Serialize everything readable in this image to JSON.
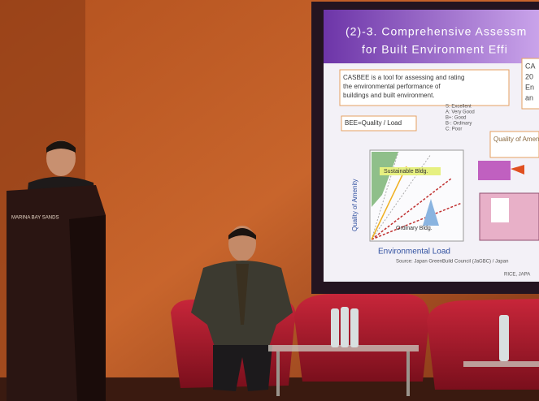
{
  "slide": {
    "title_line1": "(2)-3. Comprehensive Assessm",
    "title_line2": "for Built Environment Effi",
    "intro": [
      "CASBEE is a tool for assessing and rating",
      "the environmental performance of",
      "buildings and built environment."
    ],
    "right_box": [
      "CA",
      "20",
      "En",
      "an"
    ],
    "formula": "BEE=Quality / Load",
    "grades": [
      "S: Excellent",
      "A: Very Good",
      "B+: Good",
      "B-: Ordinary",
      "C: Poor"
    ],
    "y_axis_label": "Quality of Amenity",
    "x_axis_label": "Environmental Load",
    "region_labels": [
      "Sustainable Bldg.",
      "Ordinary Bldg."
    ],
    "side_label": "Quality of Amenity",
    "source": "Source: Japan GreenBuild Council (JaGBC) / Japan",
    "footer": "RICE, JAPA"
  },
  "podium": {
    "logo": "MARINA BAY SANDS"
  }
}
